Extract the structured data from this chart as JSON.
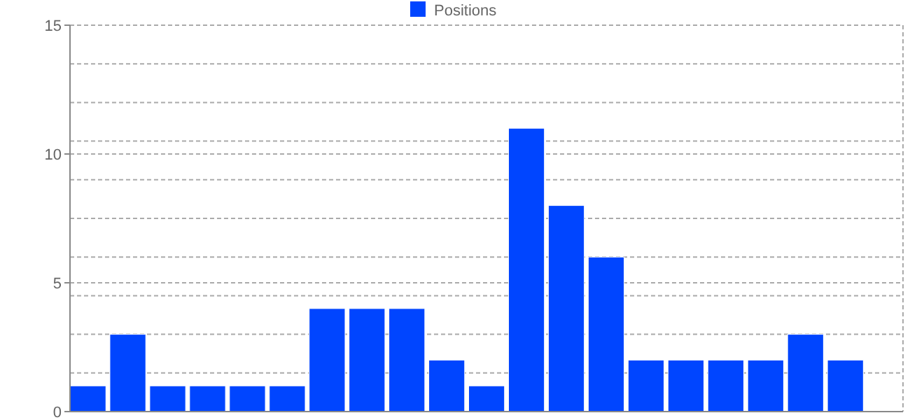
{
  "chart_data": {
    "type": "bar",
    "categories": [
      null,
      null,
      null,
      null,
      null,
      null,
      null,
      null,
      null,
      null,
      null,
      null,
      null,
      null,
      null,
      null,
      null,
      null,
      null,
      null
    ],
    "series": [
      {
        "name": "Positions",
        "color": "#0045ff",
        "values": [
          1,
          3,
          1,
          1,
          1,
          1,
          4,
          4,
          4,
          2,
          1,
          11,
          8,
          6,
          2,
          2,
          2,
          2,
          3,
          2
        ]
      }
    ],
    "ylim": [
      0,
      15
    ],
    "yticks": [
      0,
      {
        "value": 1.5,
        "label": null
      },
      {
        "value": 3,
        "label": null
      },
      {
        "value": 4.5,
        "label": null
      },
      5,
      {
        "value": 6,
        "label": null
      },
      {
        "value": 7.5,
        "label": null
      },
      {
        "value": 9,
        "label": null
      },
      10,
      {
        "value": 10.5,
        "label": null
      },
      {
        "value": 12,
        "label": null
      },
      {
        "value": 13.5,
        "label": null
      },
      15
    ],
    "grid": true,
    "legend": "top"
  }
}
